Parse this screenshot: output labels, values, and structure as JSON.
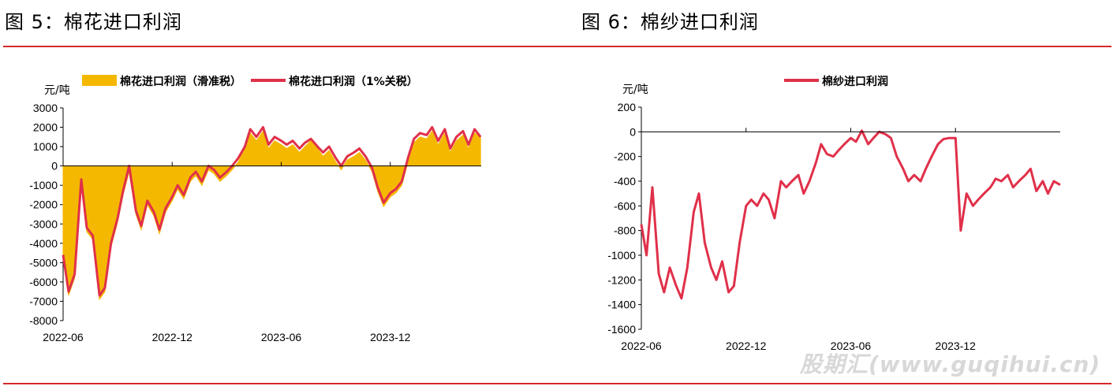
{
  "figures": [
    {
      "title": "图 5：棉花进口利润"
    },
    {
      "title": "图 6：棉纱进口利润"
    }
  ],
  "watermark": "股期汇(www.guqihui.cn)",
  "chart_data": [
    {
      "type": "area",
      "unit": "元/吨",
      "ylim": [
        -8000,
        3000
      ],
      "yticks": [
        3000,
        2000,
        1000,
        0,
        -1000,
        -2000,
        -3000,
        -4000,
        -5000,
        -6000,
        -7000,
        -8000
      ],
      "xticks": [
        "2022-06",
        "2022-12",
        "2023-06",
        "2023-12"
      ],
      "xrange": [
        "2022-06",
        "2024-05"
      ],
      "legend_position": "top",
      "colors": {
        "area": "#f5b800",
        "line": "#e0304a"
      },
      "series": [
        {
          "name": "棉花进口利润（滑准税）",
          "style": "area",
          "x": [
            "2022-06-01",
            "2022-06-10",
            "2022-06-20",
            "2022-07-01",
            "2022-07-10",
            "2022-07-20",
            "2022-08-01",
            "2022-08-10",
            "2022-08-20",
            "2022-09-01",
            "2022-09-10",
            "2022-09-20",
            "2022-10-01",
            "2022-10-10",
            "2022-10-20",
            "2022-11-01",
            "2022-11-10",
            "2022-11-20",
            "2022-12-01",
            "2022-12-10",
            "2022-12-20",
            "2023-01-01",
            "2023-01-10",
            "2023-01-20",
            "2023-02-01",
            "2023-02-10",
            "2023-02-20",
            "2023-03-01",
            "2023-03-10",
            "2023-03-20",
            "2023-04-01",
            "2023-04-10",
            "2023-04-20",
            "2023-05-01",
            "2023-05-10",
            "2023-05-20",
            "2023-06-01",
            "2023-06-10",
            "2023-06-20",
            "2023-07-01",
            "2023-07-10",
            "2023-07-20",
            "2023-08-01",
            "2023-08-10",
            "2023-08-20",
            "2023-09-01",
            "2023-09-10",
            "2023-09-20",
            "2023-10-01",
            "2023-10-10",
            "2023-10-20",
            "2023-11-01",
            "2023-11-10",
            "2023-11-20",
            "2023-12-01",
            "2023-12-10",
            "2023-12-20",
            "2024-01-01",
            "2024-01-10",
            "2024-01-20",
            "2024-02-01",
            "2024-02-10",
            "2024-02-20",
            "2024-03-01",
            "2024-03-10",
            "2024-03-20",
            "2024-04-01",
            "2024-04-10",
            "2024-04-20",
            "2024-04-30"
          ],
          "values": [
            -4800,
            -6700,
            -5800,
            -800,
            -3400,
            -3800,
            -6900,
            -6500,
            -4200,
            -2900,
            -1500,
            -300,
            -2500,
            -3300,
            -2000,
            -2600,
            -3500,
            -2400,
            -1800,
            -1200,
            -1700,
            -800,
            -500,
            -1000,
            -200,
            -400,
            -800,
            -500,
            -200,
            200,
            900,
            1700,
            1300,
            1800,
            900,
            1300,
            1100,
            900,
            1100,
            700,
            1000,
            1300,
            900,
            500,
            800,
            200,
            -200,
            300,
            500,
            700,
            300,
            -300,
            -1300,
            -2100,
            -1600,
            -1400,
            -1000,
            300,
            1200,
            1500,
            1400,
            1800,
            1100,
            1700,
            700,
            1300,
            1600,
            900,
            1700,
            1500
          ]
        },
        {
          "name": "棉花进口利润（1%关税）",
          "style": "line",
          "x": [
            "2022-06-01",
            "2022-06-10",
            "2022-06-20",
            "2022-07-01",
            "2022-07-10",
            "2022-07-20",
            "2022-08-01",
            "2022-08-10",
            "2022-08-20",
            "2022-09-01",
            "2022-09-10",
            "2022-09-20",
            "2022-10-01",
            "2022-10-10",
            "2022-10-20",
            "2022-11-01",
            "2022-11-10",
            "2022-11-20",
            "2022-12-01",
            "2022-12-10",
            "2022-12-20",
            "2023-01-01",
            "2023-01-10",
            "2023-01-20",
            "2023-02-01",
            "2023-02-10",
            "2023-02-20",
            "2023-03-01",
            "2023-03-10",
            "2023-03-20",
            "2023-04-01",
            "2023-04-10",
            "2023-04-20",
            "2023-05-01",
            "2023-05-10",
            "2023-05-20",
            "2023-06-01",
            "2023-06-10",
            "2023-06-20",
            "2023-07-01",
            "2023-07-10",
            "2023-07-20",
            "2023-08-01",
            "2023-08-10",
            "2023-08-20",
            "2023-09-01",
            "2023-09-10",
            "2023-09-20",
            "2023-10-01",
            "2023-10-10",
            "2023-10-20",
            "2023-11-01",
            "2023-11-10",
            "2023-11-20",
            "2023-12-01",
            "2023-12-10",
            "2023-12-20",
            "2024-01-01",
            "2024-01-10",
            "2024-01-20",
            "2024-02-01",
            "2024-02-10",
            "2024-02-20",
            "2024-03-01",
            "2024-03-10",
            "2024-03-20",
            "2024-04-01",
            "2024-04-10",
            "2024-04-20",
            "2024-04-30"
          ],
          "values": [
            -4600,
            -6500,
            -5600,
            -700,
            -3200,
            -3600,
            -6700,
            -6300,
            -4000,
            -2700,
            -1300,
            0,
            -2300,
            -3100,
            -1800,
            -2400,
            -3300,
            -2200,
            -1600,
            -1000,
            -1500,
            -600,
            -300,
            -800,
            0,
            -200,
            -600,
            -300,
            0,
            400,
            1000,
            1900,
            1500,
            2000,
            1100,
            1500,
            1300,
            1100,
            1300,
            900,
            1200,
            1400,
            1000,
            700,
            1000,
            400,
            0,
            500,
            700,
            900,
            500,
            -100,
            -1100,
            -1900,
            -1400,
            -1200,
            -800,
            500,
            1400,
            1700,
            1600,
            2000,
            1300,
            1900,
            900,
            1500,
            1800,
            1100,
            1900,
            1500
          ]
        }
      ]
    },
    {
      "type": "line",
      "unit": "元/吨",
      "ylim": [
        -1600,
        200
      ],
      "yticks": [
        200,
        0,
        -200,
        -400,
        -600,
        -800,
        -1000,
        -1200,
        -1400,
        -1600
      ],
      "xticks": [
        "2022-06",
        "2022-12",
        "2023-06",
        "2023-12"
      ],
      "xrange": [
        "2022-06",
        "2024-06"
      ],
      "legend_position": "top",
      "colors": {
        "line": "#e0304a"
      },
      "series": [
        {
          "name": "棉纱进口利润",
          "x": [
            "2022-06-01",
            "2022-06-10",
            "2022-06-20",
            "2022-07-01",
            "2022-07-10",
            "2022-07-20",
            "2022-08-01",
            "2022-08-10",
            "2022-08-20",
            "2022-09-01",
            "2022-09-10",
            "2022-09-20",
            "2022-10-01",
            "2022-10-10",
            "2022-10-20",
            "2022-11-01",
            "2022-11-10",
            "2022-11-20",
            "2022-12-01",
            "2022-12-10",
            "2022-12-20",
            "2023-01-01",
            "2023-01-10",
            "2023-01-20",
            "2023-02-01",
            "2023-02-10",
            "2023-02-20",
            "2023-03-01",
            "2023-03-10",
            "2023-03-20",
            "2023-04-01",
            "2023-04-10",
            "2023-04-20",
            "2023-05-01",
            "2023-05-10",
            "2023-05-20",
            "2023-06-01",
            "2023-06-10",
            "2023-06-20",
            "2023-07-01",
            "2023-07-10",
            "2023-07-20",
            "2023-08-01",
            "2023-08-10",
            "2023-08-20",
            "2023-09-01",
            "2023-09-10",
            "2023-09-20",
            "2023-10-01",
            "2023-10-10",
            "2023-10-20",
            "2023-11-01",
            "2023-11-10",
            "2023-11-20",
            "2023-12-01",
            "2023-12-10",
            "2023-12-20",
            "2024-01-01",
            "2024-01-10",
            "2024-01-20",
            "2024-02-01",
            "2024-02-05",
            "2024-02-10",
            "2024-02-20",
            "2024-03-01",
            "2024-03-10",
            "2024-03-20",
            "2024-04-01",
            "2024-04-10",
            "2024-04-20",
            "2024-05-01",
            "2024-05-10",
            "2024-05-20",
            "2024-05-31"
          ],
          "values": [
            -750,
            -1000,
            -450,
            -1150,
            -1300,
            -1100,
            -1250,
            -1350,
            -1100,
            -650,
            -500,
            -900,
            -1100,
            -1200,
            -1050,
            -1300,
            -1250,
            -900,
            -600,
            -550,
            -600,
            -500,
            -550,
            -700,
            -400,
            -450,
            -400,
            -350,
            -500,
            -400,
            -250,
            -100,
            -180,
            -200,
            -150,
            -100,
            -50,
            -80,
            10,
            -100,
            -50,
            0,
            -20,
            -50,
            -200,
            -300,
            -400,
            -350,
            -400,
            -300,
            -200,
            -100,
            -60,
            -50,
            -50,
            -800,
            -500,
            -600,
            -550,
            -500,
            -450,
            -420,
            -380,
            -400,
            -350,
            -450,
            -400,
            -350,
            -300,
            -480,
            -400,
            -500,
            -400,
            -430
          ]
        }
      ]
    }
  ]
}
